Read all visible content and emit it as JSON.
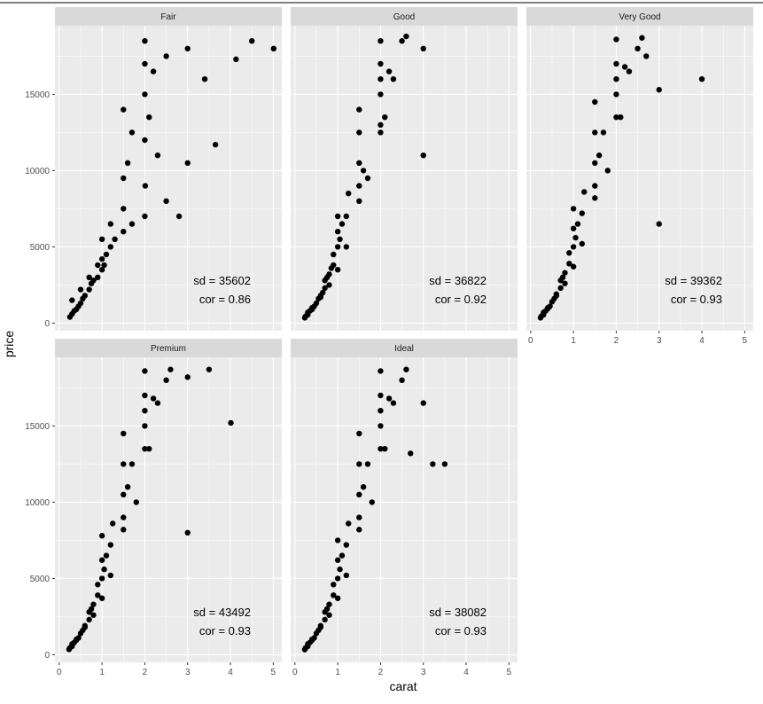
{
  "chart_data": {
    "type": "scatter",
    "xlabel": "carat",
    "ylabel": "price",
    "xlim": [
      -0.1,
      5.2
    ],
    "ylim": [
      -500,
      19500
    ],
    "x_ticks": [
      0,
      1,
      2,
      3,
      4,
      5
    ],
    "y_ticks": [
      0,
      5000,
      10000,
      15000
    ],
    "grid": true,
    "point_color": "#000000",
    "panel_background": "#ebebeb",
    "strip_background": "#d9d9d9",
    "facets": [
      {
        "name": "Fair",
        "annotation_sd": "sd = 35602",
        "annotation_cor": "cor = 0.86",
        "x": [
          0.25,
          0.3,
          0.35,
          0.4,
          0.45,
          0.5,
          0.55,
          0.6,
          0.7,
          0.75,
          0.8,
          0.9,
          1.0,
          1.0,
          1.05,
          1.1,
          1.2,
          1.3,
          1.5,
          1.5,
          1.5,
          1.6,
          1.7,
          2.0,
          2.0,
          2.0,
          2.0,
          2.01,
          2.1,
          2.2,
          2.5,
          3.0,
          3.0,
          3.4,
          3.65,
          4.13,
          4.5,
          5.01,
          0.3,
          0.5,
          0.7,
          0.9,
          1.2,
          1.0,
          1.5,
          2.0,
          1.7,
          2.3,
          2.5,
          2.8
        ],
        "y": [
          400,
          600,
          800,
          900,
          1100,
          1300,
          1600,
          1800,
          2200,
          2600,
          2800,
          3000,
          3500,
          4200,
          3800,
          4500,
          5000,
          5500,
          6000,
          7500,
          9500,
          10500,
          6500,
          15000,
          17000,
          18500,
          12000,
          9000,
          13500,
          16500,
          17500,
          18000,
          10500,
          16000,
          11700,
          17300,
          18500,
          18000,
          1500,
          2200,
          3000,
          3800,
          6500,
          5500,
          14000,
          7000,
          12500,
          11000,
          8000,
          7000
        ]
      },
      {
        "name": "Good",
        "annotation_sd": "sd = 36822",
        "annotation_cor": "cor = 0.92",
        "x": [
          0.23,
          0.25,
          0.3,
          0.3,
          0.35,
          0.4,
          0.45,
          0.5,
          0.55,
          0.6,
          0.65,
          0.7,
          0.7,
          0.75,
          0.8,
          0.85,
          0.9,
          0.9,
          1.0,
          1.0,
          1.0,
          1.05,
          1.1,
          1.2,
          1.25,
          1.5,
          1.5,
          1.5,
          1.5,
          1.6,
          2.0,
          2.0,
          2.0,
          2.0,
          2.0,
          2.1,
          2.2,
          2.5,
          3.0,
          3.0,
          0.4,
          0.6,
          0.8,
          1.0,
          1.2,
          1.5,
          1.7,
          2.0,
          2.3,
          2.6
        ],
        "y": [
          350,
          450,
          550,
          700,
          800,
          900,
          1100,
          1300,
          1600,
          1800,
          2000,
          2300,
          2800,
          3000,
          3200,
          3600,
          3800,
          4500,
          5000,
          6000,
          7000,
          5500,
          6500,
          7000,
          8500,
          9000,
          10500,
          12500,
          14000,
          10000,
          15000,
          17000,
          18500,
          16000,
          12500,
          13500,
          16500,
          18500,
          11000,
          18000,
          1000,
          1700,
          2500,
          3500,
          5000,
          8000,
          9500,
          13000,
          16000,
          18800
        ]
      },
      {
        "name": "Very Good",
        "annotation_sd": "sd = 39362",
        "annotation_cor": "cor = 0.93",
        "x": [
          0.23,
          0.25,
          0.3,
          0.3,
          0.35,
          0.4,
          0.45,
          0.5,
          0.55,
          0.6,
          0.7,
          0.7,
          0.75,
          0.8,
          0.9,
          0.9,
          1.0,
          1.0,
          1.0,
          1.05,
          1.1,
          1.2,
          1.25,
          1.5,
          1.5,
          1.5,
          1.5,
          1.6,
          1.7,
          2.0,
          2.0,
          2.0,
          2.0,
          2.1,
          2.2,
          2.5,
          2.7,
          3.0,
          3.0,
          4.0,
          0.4,
          0.6,
          0.8,
          1.0,
          1.2,
          1.5,
          1.8,
          2.0,
          2.3,
          2.6
        ],
        "y": [
          350,
          450,
          550,
          700,
          800,
          950,
          1100,
          1400,
          1600,
          1900,
          2300,
          2800,
          3000,
          3300,
          3900,
          4600,
          5000,
          6200,
          7500,
          5600,
          6500,
          7200,
          8600,
          9000,
          10500,
          12500,
          14500,
          11000,
          12500,
          15000,
          17000,
          18600,
          16000,
          13500,
          16800,
          18000,
          17500,
          15300,
          6500,
          16000,
          1000,
          1800,
          2600,
          3700,
          5200,
          8200,
          10000,
          13500,
          16500,
          18700
        ]
      },
      {
        "name": "Premium",
        "annotation_sd": "sd = 43492",
        "annotation_cor": "cor = 0.93",
        "x": [
          0.23,
          0.25,
          0.3,
          0.3,
          0.35,
          0.4,
          0.45,
          0.5,
          0.55,
          0.6,
          0.7,
          0.7,
          0.75,
          0.8,
          0.9,
          0.9,
          1.0,
          1.0,
          1.0,
          1.05,
          1.1,
          1.2,
          1.25,
          1.5,
          1.5,
          1.5,
          1.5,
          1.6,
          1.7,
          2.0,
          2.0,
          2.0,
          2.0,
          2.1,
          2.2,
          2.5,
          3.0,
          3.0,
          3.5,
          4.01,
          0.4,
          0.6,
          0.8,
          1.0,
          1.2,
          1.5,
          1.8,
          2.0,
          2.3,
          2.6
        ],
        "y": [
          350,
          450,
          550,
          700,
          800,
          950,
          1100,
          1400,
          1600,
          1900,
          2300,
          2800,
          3000,
          3300,
          3900,
          4600,
          5000,
          6200,
          7800,
          5600,
          6500,
          7200,
          8600,
          9000,
          10500,
          12500,
          14500,
          11000,
          12500,
          15000,
          17000,
          18600,
          16000,
          13500,
          16800,
          18000,
          18200,
          8000,
          18700,
          15200,
          1000,
          1800,
          2600,
          3700,
          5200,
          8200,
          10000,
          13500,
          16500,
          18700
        ]
      },
      {
        "name": "Ideal",
        "annotation_sd": "sd = 38082",
        "annotation_cor": "cor = 0.93",
        "x": [
          0.23,
          0.25,
          0.3,
          0.3,
          0.35,
          0.4,
          0.45,
          0.5,
          0.55,
          0.6,
          0.7,
          0.7,
          0.75,
          0.8,
          0.9,
          0.9,
          1.0,
          1.0,
          1.0,
          1.05,
          1.1,
          1.2,
          1.25,
          1.5,
          1.5,
          1.5,
          1.5,
          1.6,
          1.7,
          2.0,
          2.0,
          2.0,
          2.0,
          2.1,
          2.2,
          2.5,
          2.7,
          3.0,
          3.22,
          3.5,
          0.4,
          0.6,
          0.8,
          1.0,
          1.2,
          1.5,
          1.8,
          2.0,
          2.3,
          2.6
        ],
        "y": [
          340,
          450,
          550,
          700,
          800,
          950,
          1100,
          1400,
          1600,
          1900,
          2300,
          2800,
          3000,
          3300,
          3900,
          4600,
          5000,
          6200,
          7500,
          5600,
          6500,
          7200,
          8600,
          9000,
          10500,
          12500,
          14500,
          11000,
          12500,
          15000,
          17000,
          18600,
          16000,
          13500,
          16800,
          18000,
          13200,
          16500,
          12500,
          12500,
          1000,
          1800,
          2600,
          3700,
          5200,
          8200,
          10000,
          13500,
          16500,
          18700
        ]
      }
    ]
  }
}
